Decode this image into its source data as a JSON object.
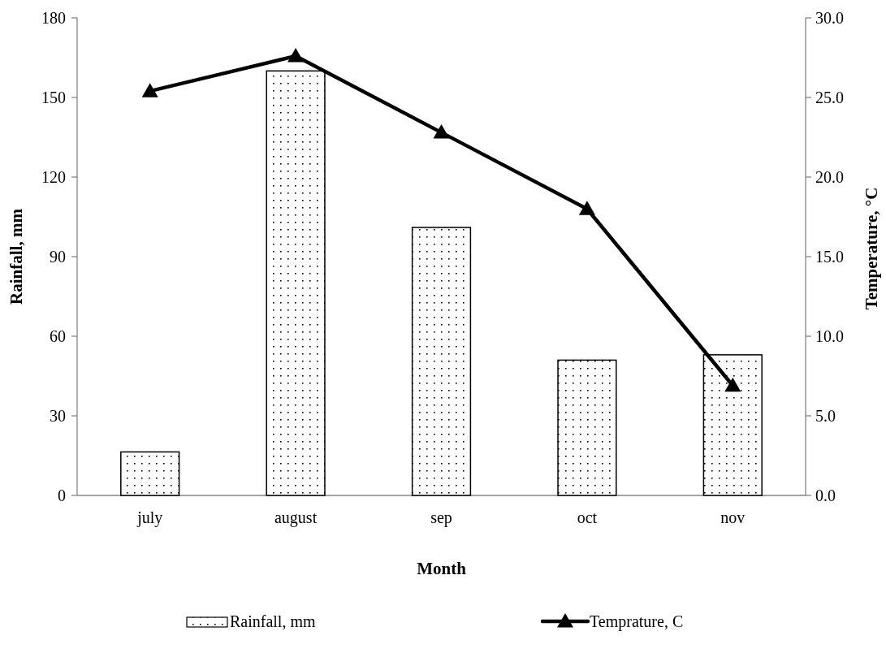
{
  "chart_data": {
    "type": "bar",
    "xlabel": "Month",
    "ylabel": "Rainfall, mm",
    "y2label": "Temperature, °C",
    "categories": [
      "july",
      "august",
      "sep",
      "oct",
      "nov"
    ],
    "series": [
      {
        "name": "Rainfall, mm",
        "color": "#000000",
        "values": [
          16.4,
          160,
          101,
          51,
          53
        ]
      },
      {
        "name": "Temprature, C",
        "type": "line",
        "axis": "y2",
        "color": "#000000",
        "marker": "triangle",
        "line_style": "solid",
        "values": [
          25.4,
          27.6,
          22.8,
          18.0,
          6.9
        ]
      }
    ],
    "ylim": [
      0,
      180
    ],
    "yticks": [
      0,
      30,
      60,
      90,
      120,
      150,
      180
    ],
    "y2lim": [
      0,
      30
    ],
    "y2ticks": [
      {
        "value": 0,
        "label": "0.0"
      },
      {
        "value": 5,
        "label": "5.0"
      },
      {
        "value": 10,
        "label": "10.0"
      },
      {
        "value": 15,
        "label": "15.0"
      },
      {
        "value": 20,
        "label": "20.0"
      },
      {
        "value": 25,
        "label": "25.0"
      },
      {
        "value": 30,
        "label": "30.0"
      }
    ],
    "grid": false,
    "legend": "bottom"
  }
}
